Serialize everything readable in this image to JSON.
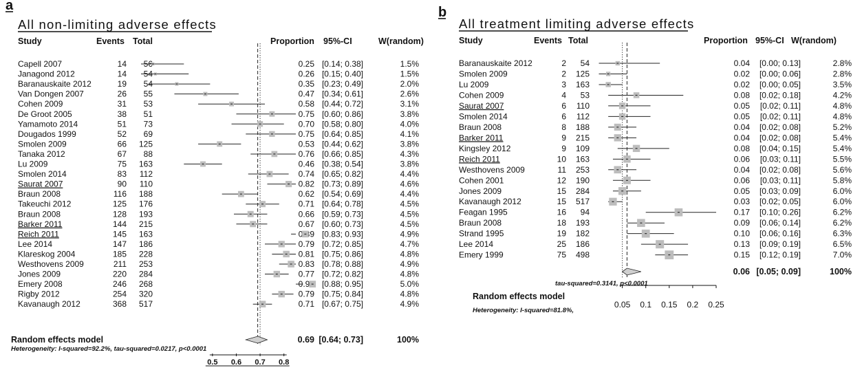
{
  "panels": [
    {
      "letter": "a",
      "title": "All non-limiting adverse effects",
      "headers": {
        "study": "Study",
        "events": "Events",
        "total": "Total",
        "proportion": "Proportion",
        "ci": "95%-CI",
        "weight": "W(random)"
      },
      "studies": [
        {
          "study": "Capell 2007",
          "events": "14",
          "total": "56",
          "prop": "0.25",
          "ci": "[0.14; 0.38]",
          "w": "1.5%",
          "p": 0.25,
          "lo": 0.14,
          "hi": 0.38,
          "wt": 1.5,
          "underline": false
        },
        {
          "study": "Janagond 2012",
          "events": "14",
          "total": "54",
          "prop": "0.26",
          "ci": "[0.15; 0.40]",
          "w": "1.5%",
          "p": 0.26,
          "lo": 0.15,
          "hi": 0.4,
          "wt": 1.5,
          "underline": false
        },
        {
          "study": "Baranauskaite 2012",
          "events": "19",
          "total": "54",
          "prop": "0.35",
          "ci": "[0.23; 0.49]",
          "w": "2.0%",
          "p": 0.35,
          "lo": 0.23,
          "hi": 0.49,
          "wt": 2.0,
          "underline": false
        },
        {
          "study": "Van Dongen 2007",
          "events": "26",
          "total": "55",
          "prop": "0.47",
          "ci": "[0.34; 0.61]",
          "w": "2.6%",
          "p": 0.47,
          "lo": 0.34,
          "hi": 0.61,
          "wt": 2.6,
          "underline": false
        },
        {
          "study": "Cohen 2009",
          "events": "31",
          "total": "53",
          "prop": "0.58",
          "ci": "[0.44; 0.72]",
          "w": "3.1%",
          "p": 0.58,
          "lo": 0.44,
          "hi": 0.72,
          "wt": 3.1,
          "underline": false
        },
        {
          "study": "De Groot 2005",
          "events": "38",
          "total": "51",
          "prop": "0.75",
          "ci": "[0.60; 0.86]",
          "w": "3.8%",
          "p": 0.75,
          "lo": 0.6,
          "hi": 0.86,
          "wt": 3.8,
          "underline": false
        },
        {
          "study": "Yamamoto 2014",
          "events": "51",
          "total": "73",
          "prop": "0.70",
          "ci": "[0.58; 0.80]",
          "w": "4.0%",
          "p": 0.7,
          "lo": 0.58,
          "hi": 0.8,
          "wt": 4.0,
          "underline": false
        },
        {
          "study": "Dougados 1999",
          "events": "52",
          "total": "69",
          "prop": "0.75",
          "ci": "[0.64; 0.85]",
          "w": "4.1%",
          "p": 0.75,
          "lo": 0.64,
          "hi": 0.85,
          "wt": 4.1,
          "underline": false
        },
        {
          "study": "Smolen 2009",
          "events": "66",
          "total": "125",
          "prop": "0.53",
          "ci": "[0.44; 0.62]",
          "w": "3.8%",
          "p": 0.53,
          "lo": 0.44,
          "hi": 0.62,
          "wt": 3.8,
          "underline": false
        },
        {
          "study": "Tanaka 2012",
          "events": "67",
          "total": "88",
          "prop": "0.76",
          "ci": "[0.66; 0.85]",
          "w": "4.3%",
          "p": 0.76,
          "lo": 0.66,
          "hi": 0.85,
          "wt": 4.3,
          "underline": false
        },
        {
          "study": "Lu 2009",
          "events": "75",
          "total": "163",
          "prop": "0.46",
          "ci": "[0.38; 0.54]",
          "w": "3.8%",
          "p": 0.46,
          "lo": 0.38,
          "hi": 0.54,
          "wt": 3.8,
          "underline": false
        },
        {
          "study": "Smolen 2014",
          "events": "83",
          "total": "112",
          "prop": "0.74",
          "ci": "[0.65; 0.82]",
          "w": "4.4%",
          "p": 0.74,
          "lo": 0.65,
          "hi": 0.82,
          "wt": 4.4,
          "underline": false
        },
        {
          "study": "Saurat 2007",
          "events": "90",
          "total": "110",
          "prop": "0.82",
          "ci": "[0.73; 0.89]",
          "w": "4.6%",
          "p": 0.82,
          "lo": 0.73,
          "hi": 0.89,
          "wt": 4.6,
          "underline": true
        },
        {
          "study": "Braun 2008",
          "events": "116",
          "total": "188",
          "prop": "0.62",
          "ci": "[0.54; 0.69]",
          "w": "4.4%",
          "p": 0.62,
          "lo": 0.54,
          "hi": 0.69,
          "wt": 4.4,
          "underline": false
        },
        {
          "study": "Takeuchi 2012",
          "events": "125",
          "total": "176",
          "prop": "0.71",
          "ci": "[0.64; 0.78]",
          "w": "4.5%",
          "p": 0.71,
          "lo": 0.64,
          "hi": 0.78,
          "wt": 4.5,
          "underline": false
        },
        {
          "study": "Braun 2008",
          "events": "128",
          "total": "193",
          "prop": "0.66",
          "ci": "[0.59; 0.73]",
          "w": "4.5%",
          "p": 0.66,
          "lo": 0.59,
          "hi": 0.73,
          "wt": 4.5,
          "underline": false
        },
        {
          "study": "Barker 2011",
          "events": "144",
          "total": "215",
          "prop": "0.67",
          "ci": "[0.60; 0.73]",
          "w": "4.5%",
          "p": 0.67,
          "lo": 0.6,
          "hi": 0.73,
          "wt": 4.5,
          "underline": true
        },
        {
          "study": "Reich 2011",
          "events": "145",
          "total": "163",
          "prop": "0.89",
          "ci": "[0.83; 0.93]",
          "w": "4.9%",
          "p": 0.89,
          "lo": 0.83,
          "hi": 0.93,
          "wt": 4.9,
          "underline": true
        },
        {
          "study": "Lee 2014",
          "events": "147",
          "total": "186",
          "prop": "0.79",
          "ci": "[0.72; 0.85]",
          "w": "4.7%",
          "p": 0.79,
          "lo": 0.72,
          "hi": 0.85,
          "wt": 4.7,
          "underline": false
        },
        {
          "study": "Klareskog 2004",
          "events": "185",
          "total": "228",
          "prop": "0.81",
          "ci": "[0.75; 0.86]",
          "w": "4.8%",
          "p": 0.81,
          "lo": 0.75,
          "hi": 0.86,
          "wt": 4.8,
          "underline": false
        },
        {
          "study": "Westhovens 2009",
          "events": "211",
          "total": "253",
          "prop": "0.83",
          "ci": "[0.78; 0.88]",
          "w": "4.9%",
          "p": 0.83,
          "lo": 0.78,
          "hi": 0.88,
          "wt": 4.9,
          "underline": false
        },
        {
          "study": "Jones 2009",
          "events": "220",
          "total": "284",
          "prop": "0.77",
          "ci": "[0.72; 0.82]",
          "w": "4.8%",
          "p": 0.77,
          "lo": 0.72,
          "hi": 0.82,
          "wt": 4.8,
          "underline": false
        },
        {
          "study": "Emery 2008",
          "events": "246",
          "total": "268",
          "prop": "0.92",
          "ci": "[0.88; 0.95]",
          "w": "5.0%",
          "p": 0.92,
          "lo": 0.88,
          "hi": 0.95,
          "wt": 5.0,
          "underline": false
        },
        {
          "study": "Rigby 2012",
          "events": "254",
          "total": "320",
          "prop": "0.79",
          "ci": "[0.75; 0.84]",
          "w": "4.8%",
          "p": 0.79,
          "lo": 0.75,
          "hi": 0.84,
          "wt": 4.8,
          "underline": false
        },
        {
          "study": "Kavanaugh 2012",
          "events": "368",
          "total": "517",
          "prop": "0.71",
          "ci": "[0.67; 0.75]",
          "w": "4.9%",
          "p": 0.71,
          "lo": 0.67,
          "hi": 0.75,
          "wt": 4.9,
          "underline": false
        }
      ],
      "model": {
        "label": "Random effects model",
        "prop": "0.69",
        "ci": "[0.64; 0.73]",
        "w": "100%",
        "p": 0.69,
        "lo": 0.64,
        "hi": 0.73
      },
      "het": {
        "line1": "Heterogeneity: I-squared=92.2%, tau-squared=0.0217, p<0.0001",
        "line2": ""
      },
      "axis": {
        "ticks": [
          "0.5",
          "0.6",
          "0.7",
          "0.8"
        ],
        "tick_values": [
          0.5,
          0.6,
          0.7,
          0.8
        ],
        "min": 0.2,
        "max": 0.85,
        "null_line": 0.69,
        "dotted_line": 0.7
      }
    },
    {
      "letter": "b",
      "title": "All treatment limiting adverse effects",
      "headers": {
        "study": "Study",
        "events": "Events",
        "total": "Total",
        "proportion": "Proportion",
        "ci": "95%-CI",
        "weight": "W(random)"
      },
      "studies": [
        {
          "study": "Baranauskaite 2012",
          "events": "2",
          "total": "54",
          "prop": "0.04",
          "ci": "[0.00; 0.13]",
          "w": "2.8%",
          "p": 0.04,
          "lo": 0.0,
          "hi": 0.13,
          "wt": 2.8,
          "underline": false
        },
        {
          "study": "Smolen 2009",
          "events": "2",
          "total": "125",
          "prop": "0.02",
          "ci": "[0.00; 0.06]",
          "w": "2.8%",
          "p": 0.02,
          "lo": 0.0,
          "hi": 0.06,
          "wt": 2.8,
          "underline": false
        },
        {
          "study": "Lu 2009",
          "events": "3",
          "total": "163",
          "prop": "0.02",
          "ci": "[0.00; 0.05]",
          "w": "3.5%",
          "p": 0.02,
          "lo": 0.0,
          "hi": 0.05,
          "wt": 3.5,
          "underline": false
        },
        {
          "study": "Cohen 2009",
          "events": "4",
          "total": "53",
          "prop": "0.08",
          "ci": "[0.02; 0.18]",
          "w": "4.2%",
          "p": 0.08,
          "lo": 0.02,
          "hi": 0.18,
          "wt": 4.2,
          "underline": false
        },
        {
          "study": "Saurat 2007",
          "events": "6",
          "total": "110",
          "prop": "0.05",
          "ci": "[0.02; 0.11]",
          "w": "4.8%",
          "p": 0.05,
          "lo": 0.02,
          "hi": 0.11,
          "wt": 4.8,
          "underline": true
        },
        {
          "study": "Smolen 2014",
          "events": "6",
          "total": "112",
          "prop": "0.05",
          "ci": "[0.02; 0.11]",
          "w": "4.8%",
          "p": 0.05,
          "lo": 0.02,
          "hi": 0.11,
          "wt": 4.8,
          "underline": false
        },
        {
          "study": "Braun 2008",
          "events": "8",
          "total": "188",
          "prop": "0.04",
          "ci": "[0.02; 0.08]",
          "w": "5.2%",
          "p": 0.04,
          "lo": 0.02,
          "hi": 0.08,
          "wt": 5.2,
          "underline": false
        },
        {
          "study": "Barker 2011",
          "events": "9",
          "total": "215",
          "prop": "0.04",
          "ci": "[0.02; 0.08]",
          "w": "5.4%",
          "p": 0.04,
          "lo": 0.02,
          "hi": 0.08,
          "wt": 5.4,
          "underline": true
        },
        {
          "study": "Kingsley 2012",
          "events": "9",
          "total": "109",
          "prop": "0.08",
          "ci": "[0.04; 0.15]",
          "w": "5.4%",
          "p": 0.08,
          "lo": 0.04,
          "hi": 0.15,
          "wt": 5.4,
          "underline": false
        },
        {
          "study": "Reich 2011",
          "events": "10",
          "total": "163",
          "prop": "0.06",
          "ci": "[0.03; 0.11]",
          "w": "5.5%",
          "p": 0.06,
          "lo": 0.03,
          "hi": 0.11,
          "wt": 5.5,
          "underline": true
        },
        {
          "study": "Westhovens 2009",
          "events": "11",
          "total": "253",
          "prop": "0.04",
          "ci": "[0.02; 0.08]",
          "w": "5.6%",
          "p": 0.04,
          "lo": 0.02,
          "hi": 0.08,
          "wt": 5.6,
          "underline": false
        },
        {
          "study": "Cohen 2001",
          "events": "12",
          "total": "190",
          "prop": "0.06",
          "ci": "[0.03; 0.11]",
          "w": "5.8%",
          "p": 0.06,
          "lo": 0.03,
          "hi": 0.11,
          "wt": 5.8,
          "underline": false
        },
        {
          "study": "Jones 2009",
          "events": "15",
          "total": "284",
          "prop": "0.05",
          "ci": "[0.03; 0.09]",
          "w": "6.0%",
          "p": 0.05,
          "lo": 0.03,
          "hi": 0.09,
          "wt": 6.0,
          "underline": false
        },
        {
          "study": "Kavanaugh 2012",
          "events": "15",
          "total": "517",
          "prop": "0.03",
          "ci": "[0.02; 0.05]",
          "w": "6.0%",
          "p": 0.03,
          "lo": 0.02,
          "hi": 0.05,
          "wt": 6.0,
          "underline": false
        },
        {
          "study": "Feagan 1995",
          "events": "16",
          "total": "94",
          "prop": "0.17",
          "ci": "[0.10; 0.26]",
          "w": "6.2%",
          "p": 0.17,
          "lo": 0.1,
          "hi": 0.26,
          "wt": 6.2,
          "underline": false
        },
        {
          "study": "Braun 2008",
          "events": "18",
          "total": "193",
          "prop": "0.09",
          "ci": "[0.06; 0.14]",
          "w": "6.2%",
          "p": 0.09,
          "lo": 0.06,
          "hi": 0.14,
          "wt": 6.2,
          "underline": false
        },
        {
          "study": "Strand 1995",
          "events": "19",
          "total": "182",
          "prop": "0.10",
          "ci": "[0.06; 0.16]",
          "w": "6.3%",
          "p": 0.1,
          "lo": 0.06,
          "hi": 0.16,
          "wt": 6.3,
          "underline": false
        },
        {
          "study": "Lee 2014",
          "events": "25",
          "total": "186",
          "prop": "0.13",
          "ci": "[0.09; 0.19]",
          "w": "6.5%",
          "p": 0.13,
          "lo": 0.09,
          "hi": 0.19,
          "wt": 6.5,
          "underline": false
        },
        {
          "study": "Emery 1999",
          "events": "75",
          "total": "498",
          "prop": "0.15",
          "ci": "[0.12; 0.19]",
          "w": "7.0%",
          "p": 0.15,
          "lo": 0.12,
          "hi": 0.19,
          "wt": 7.0,
          "underline": false
        }
      ],
      "model": {
        "label": "Random effects model",
        "prop": "0.06",
        "ci": "[0.05; 0.09]",
        "w": "100%",
        "p": 0.06,
        "lo": 0.05,
        "hi": 0.09
      },
      "het": {
        "line1": "Heterogeneity: I-squared=81.8%,",
        "line2": "tau-squared=0.3141, p<0.0001"
      },
      "axis": {
        "ticks": [
          "0.05",
          "0.1",
          "0.15",
          "0.2",
          "0.25"
        ],
        "tick_values": [
          0.05,
          0.1,
          0.15,
          0.2,
          0.25
        ],
        "min": 0.0,
        "max": 0.25,
        "null_line": 0.06,
        "dotted_line": 0.05
      }
    }
  ],
  "chart_data": [
    {
      "type": "forest",
      "title": "All non-limiting adverse effects",
      "xlabel": "Proportion",
      "categories": [
        "Capell 2007",
        "Janagond 2012",
        "Baranauskaite 2012",
        "Van Dongen 2007",
        "Cohen 2009",
        "De Groot 2005",
        "Yamamoto 2014",
        "Dougados 1999",
        "Smolen 2009",
        "Tanaka 2012",
        "Lu 2009",
        "Smolen 2014",
        "Saurat 2007",
        "Braun 2008",
        "Takeuchi 2012",
        "Braun 2008",
        "Barker 2011",
        "Reich 2011",
        "Lee 2014",
        "Klareskog 2004",
        "Westhovens 2009",
        "Jones 2009",
        "Emery 2008",
        "Rigby 2012",
        "Kavanaugh 2012"
      ],
      "values": [
        0.25,
        0.26,
        0.35,
        0.47,
        0.58,
        0.75,
        0.7,
        0.75,
        0.53,
        0.76,
        0.46,
        0.74,
        0.82,
        0.62,
        0.71,
        0.66,
        0.67,
        0.89,
        0.79,
        0.81,
        0.83,
        0.77,
        0.92,
        0.79,
        0.71
      ],
      "pooled": 0.69,
      "xticks": [
        0.5,
        0.6,
        0.7,
        0.8
      ]
    },
    {
      "type": "forest",
      "title": "All treatment limiting adverse effects",
      "xlabel": "Proportion",
      "categories": [
        "Baranauskaite 2012",
        "Smolen 2009",
        "Lu 2009",
        "Cohen 2009",
        "Saurat 2007",
        "Smolen 2014",
        "Braun 2008",
        "Barker 2011",
        "Kingsley 2012",
        "Reich 2011",
        "Westhovens 2009",
        "Cohen 2001",
        "Jones 2009",
        "Kavanaugh 2012",
        "Feagan 1995",
        "Braun 2008",
        "Strand 1995",
        "Lee 2014",
        "Emery 1999"
      ],
      "values": [
        0.04,
        0.02,
        0.02,
        0.08,
        0.05,
        0.05,
        0.04,
        0.04,
        0.08,
        0.06,
        0.04,
        0.06,
        0.05,
        0.03,
        0.17,
        0.09,
        0.1,
        0.13,
        0.15
      ],
      "pooled": 0.06,
      "xticks": [
        0.05,
        0.1,
        0.15,
        0.2,
        0.25
      ]
    }
  ]
}
